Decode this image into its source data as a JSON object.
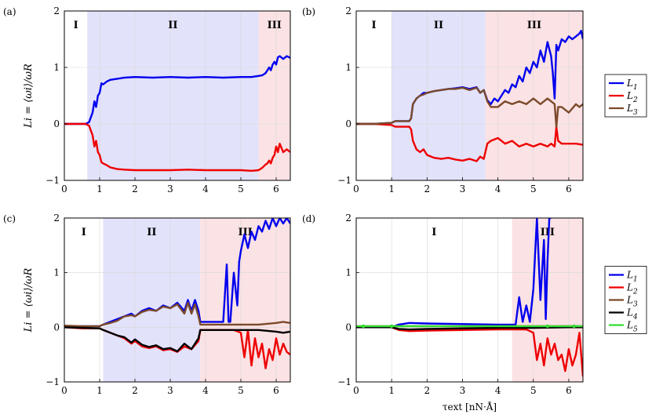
{
  "figure": {
    "xlabel": "τext [nN·Å]",
    "ylabel": "Li = ⟨ωi⟩/ωR"
  },
  "chart_data": [
    {
      "type": "line",
      "panel_label": "(a)",
      "xlim": [
        0,
        6.4
      ],
      "ylim": [
        -1,
        2
      ],
      "xticks": [
        0,
        1,
        2,
        3,
        4,
        5,
        6
      ],
      "yticks": [
        -1,
        0,
        1,
        2
      ],
      "grid": true,
      "show_ylabel": true,
      "show_xlabel": false,
      "regions": [
        {
          "label": "I",
          "x0": 0,
          "x1": 0.65,
          "color": "#ffffff"
        },
        {
          "label": "II",
          "x0": 0.65,
          "x1": 5.5,
          "color": "#e2e2fb"
        },
        {
          "label": "III",
          "x0": 5.5,
          "x1": 6.4,
          "color": "#fbe2e4"
        }
      ],
      "legend": null,
      "series": [
        {
          "name": "L1",
          "color": "#0000ee",
          "x": [
            0,
            0.3,
            0.6,
            0.7,
            0.8,
            0.85,
            0.9,
            0.95,
            1.0,
            1.05,
            1.1,
            1.2,
            1.3,
            1.5,
            1.7,
            2.0,
            2.5,
            3.0,
            3.5,
            4.0,
            4.5,
            5.0,
            5.3,
            5.5,
            5.6,
            5.7,
            5.75,
            5.8,
            5.85,
            5.9,
            5.95,
            6.0,
            6.05,
            6.1,
            6.2,
            6.3,
            6.4
          ],
          "y": [
            0,
            0,
            0,
            0.03,
            0.2,
            0.4,
            0.3,
            0.5,
            0.55,
            0.72,
            0.7,
            0.75,
            0.78,
            0.8,
            0.82,
            0.83,
            0.82,
            0.83,
            0.82,
            0.83,
            0.82,
            0.83,
            0.83,
            0.85,
            0.86,
            0.9,
            0.95,
            1.0,
            0.95,
            1.05,
            1.1,
            1.05,
            1.18,
            1.2,
            1.15,
            1.2,
            1.17
          ]
        },
        {
          "name": "L2",
          "color": "#ee0000",
          "x": [
            0,
            0.3,
            0.6,
            0.7,
            0.8,
            0.85,
            0.9,
            0.95,
            1.0,
            1.05,
            1.1,
            1.2,
            1.3,
            1.5,
            1.7,
            2.0,
            2.5,
            3.0,
            3.5,
            4.0,
            4.5,
            5.0,
            5.3,
            5.5,
            5.6,
            5.7,
            5.75,
            5.8,
            5.85,
            5.9,
            5.95,
            6.0,
            6.05,
            6.1,
            6.2,
            6.3,
            6.4
          ],
          "y": [
            0,
            0,
            0,
            -0.03,
            -0.2,
            -0.4,
            -0.3,
            -0.5,
            -0.55,
            -0.68,
            -0.7,
            -0.73,
            -0.77,
            -0.8,
            -0.81,
            -0.82,
            -0.82,
            -0.82,
            -0.81,
            -0.82,
            -0.82,
            -0.82,
            -0.83,
            -0.82,
            -0.78,
            -0.72,
            -0.7,
            -0.65,
            -0.7,
            -0.6,
            -0.55,
            -0.4,
            -0.5,
            -0.35,
            -0.5,
            -0.45,
            -0.5
          ]
        }
      ]
    },
    {
      "type": "line",
      "panel_label": "(b)",
      "xlim": [
        0,
        6.4
      ],
      "ylim": [
        -1,
        2
      ],
      "xticks": [
        0,
        1,
        2,
        3,
        4,
        5,
        6
      ],
      "yticks": [
        -1,
        0,
        1,
        2
      ],
      "grid": true,
      "show_ylabel": false,
      "show_xlabel": false,
      "regions": [
        {
          "label": "I",
          "x0": 0,
          "x1": 1.0,
          "color": "#ffffff"
        },
        {
          "label": "II",
          "x0": 1.0,
          "x1": 3.65,
          "color": "#e2e2fb"
        },
        {
          "label": "III",
          "x0": 3.65,
          "x1": 6.4,
          "color": "#fbe2e4"
        }
      ],
      "legend": [
        "L1",
        "L2",
        "L3"
      ],
      "series": [
        {
          "name": "L1",
          "color": "#0000ee",
          "x": [
            0,
            0.5,
            1.0,
            1.1,
            1.3,
            1.5,
            1.55,
            1.6,
            1.7,
            1.8,
            1.9,
            2.0,
            2.2,
            2.4,
            2.6,
            2.8,
            3.0,
            3.2,
            3.4,
            3.5,
            3.6,
            3.7,
            3.8,
            3.9,
            4.0,
            4.1,
            4.2,
            4.3,
            4.4,
            4.5,
            4.6,
            4.7,
            4.8,
            4.9,
            5.0,
            5.1,
            5.2,
            5.3,
            5.4,
            5.5,
            5.55,
            5.6,
            5.65,
            5.7,
            5.8,
            5.9,
            6.0,
            6.1,
            6.2,
            6.3,
            6.35,
            6.4
          ],
          "y": [
            0,
            0,
            0.02,
            0.05,
            0.05,
            0.05,
            0.1,
            0.35,
            0.45,
            0.5,
            0.55,
            0.55,
            0.58,
            0.6,
            0.62,
            0.63,
            0.65,
            0.62,
            0.65,
            0.55,
            0.6,
            0.42,
            0.35,
            0.45,
            0.4,
            0.5,
            0.6,
            0.55,
            0.7,
            0.65,
            0.85,
            0.75,
            1.0,
            0.9,
            1.1,
            1.0,
            1.3,
            1.1,
            1.45,
            1.2,
            0.9,
            0.45,
            1.4,
            1.3,
            1.5,
            1.45,
            1.55,
            1.5,
            1.55,
            1.6,
            1.65,
            1.5
          ]
        },
        {
          "name": "L2",
          "color": "#ee0000",
          "x": [
            0,
            0.5,
            1.0,
            1.1,
            1.3,
            1.5,
            1.55,
            1.6,
            1.7,
            1.8,
            1.9,
            2.0,
            2.2,
            2.4,
            2.6,
            2.8,
            3.0,
            3.2,
            3.4,
            3.5,
            3.6,
            3.7,
            3.8,
            4.0,
            4.2,
            4.4,
            4.6,
            4.8,
            5.0,
            5.2,
            5.4,
            5.5,
            5.6,
            5.65,
            5.7,
            5.8,
            6.0,
            6.2,
            6.4
          ],
          "y": [
            0,
            0,
            -0.02,
            -0.05,
            -0.05,
            -0.05,
            -0.1,
            -0.3,
            -0.45,
            -0.5,
            -0.45,
            -0.55,
            -0.6,
            -0.62,
            -0.6,
            -0.63,
            -0.65,
            -0.62,
            -0.66,
            -0.58,
            -0.62,
            -0.35,
            -0.3,
            -0.25,
            -0.35,
            -0.3,
            -0.4,
            -0.35,
            -0.4,
            -0.35,
            -0.4,
            -0.35,
            -0.4,
            -0.05,
            -0.3,
            -0.35,
            -0.35,
            -0.35,
            -0.37
          ]
        },
        {
          "name": "L3",
          "color": "#7b4a2a",
          "x": [
            0,
            0.5,
            1.0,
            1.1,
            1.3,
            1.5,
            1.55,
            1.6,
            1.7,
            1.8,
            1.9,
            2.0,
            2.2,
            2.4,
            2.6,
            2.8,
            3.0,
            3.2,
            3.4,
            3.5,
            3.6,
            3.7,
            3.8,
            4.0,
            4.2,
            4.4,
            4.6,
            4.8,
            5.0,
            5.2,
            5.4,
            5.5,
            5.6,
            5.65,
            5.7,
            5.8,
            6.0,
            6.2,
            6.3,
            6.4
          ],
          "y": [
            0,
            0,
            0.02,
            0.05,
            0.05,
            0.05,
            0.1,
            0.35,
            0.45,
            0.5,
            0.52,
            0.55,
            0.58,
            0.6,
            0.62,
            0.62,
            0.64,
            0.6,
            0.64,
            0.55,
            0.6,
            0.4,
            0.3,
            0.3,
            0.4,
            0.35,
            0.4,
            0.35,
            0.45,
            0.35,
            0.45,
            0.4,
            0.35,
            -0.05,
            0.3,
            0.3,
            0.2,
            0.35,
            0.3,
            0.35
          ]
        }
      ]
    },
    {
      "type": "line",
      "panel_label": "(c)",
      "xlim": [
        0,
        6.4
      ],
      "ylim": [
        -1,
        2
      ],
      "xticks": [
        0,
        1,
        2,
        3,
        4,
        5,
        6
      ],
      "yticks": [
        -1,
        0,
        1,
        2
      ],
      "grid": true,
      "show_ylabel": true,
      "show_xlabel": false,
      "regions": [
        {
          "label": "I",
          "x0": 0,
          "x1": 1.1,
          "color": "#ffffff"
        },
        {
          "label": "II",
          "x0": 1.1,
          "x1": 3.85,
          "color": "#e2e2fb"
        },
        {
          "label": "III",
          "x0": 3.85,
          "x1": 6.4,
          "color": "#fbe2e4"
        }
      ],
      "legend": null,
      "series": [
        {
          "name": "L1",
          "color": "#0000ee",
          "x": [
            0,
            0.5,
            1.0,
            1.1,
            1.3,
            1.5,
            1.7,
            1.9,
            2.0,
            2.2,
            2.4,
            2.6,
            2.8,
            3.0,
            3.2,
            3.4,
            3.5,
            3.6,
            3.7,
            3.8,
            3.85,
            4.0,
            4.5,
            4.6,
            4.65,
            4.7,
            4.8,
            4.9,
            4.95,
            5.0,
            5.1,
            5.2,
            5.3,
            5.4,
            5.5,
            5.6,
            5.7,
            5.8,
            5.9,
            6.0,
            6.1,
            6.2,
            6.3,
            6.4
          ],
          "y": [
            0,
            0.02,
            0.02,
            0.05,
            0.1,
            0.15,
            0.2,
            0.25,
            0.2,
            0.3,
            0.35,
            0.3,
            0.4,
            0.35,
            0.45,
            0.3,
            0.5,
            0.3,
            0.5,
            0.3,
            0.1,
            0.1,
            0.1,
            1.15,
            0.1,
            0.1,
            1.0,
            0.4,
            1.2,
            1.4,
            1.7,
            1.45,
            1.75,
            1.6,
            1.85,
            1.75,
            1.95,
            1.8,
            2.0,
            1.85,
            2.0,
            1.9,
            2.0,
            1.9
          ]
        },
        {
          "name": "L2",
          "color": "#ee0000",
          "x": [
            0,
            0.5,
            1.0,
            1.1,
            1.3,
            1.5,
            1.7,
            1.9,
            2.0,
            2.2,
            2.4,
            2.6,
            2.8,
            3.0,
            3.2,
            3.4,
            3.6,
            3.8,
            3.85,
            4.0,
            4.5,
            4.8,
            5.0,
            5.1,
            5.2,
            5.3,
            5.4,
            5.5,
            5.6,
            5.7,
            5.8,
            5.9,
            6.0,
            6.1,
            6.2,
            6.3,
            6.4
          ],
          "y": [
            0,
            -0.02,
            -0.02,
            -0.05,
            -0.1,
            -0.15,
            -0.2,
            -0.3,
            -0.25,
            -0.35,
            -0.38,
            -0.35,
            -0.42,
            -0.4,
            -0.45,
            -0.35,
            -0.4,
            -0.25,
            -0.05,
            -0.05,
            -0.05,
            -0.05,
            -0.1,
            -0.55,
            -0.05,
            -0.7,
            -0.2,
            -0.55,
            -0.3,
            -0.75,
            -0.4,
            -0.6,
            -0.2,
            -0.5,
            -0.3,
            -0.45,
            -0.5
          ]
        },
        {
          "name": "L3",
          "color": "#7b4a2a",
          "x": [
            0,
            0.5,
            1.0,
            1.1,
            1.3,
            1.5,
            1.7,
            1.9,
            2.0,
            2.2,
            2.4,
            2.6,
            2.8,
            3.0,
            3.2,
            3.4,
            3.5,
            3.6,
            3.7,
            3.8,
            3.85,
            4.0,
            4.5,
            5.0,
            5.5,
            6.0,
            6.2,
            6.4
          ],
          "y": [
            0.03,
            0.02,
            0.02,
            0.05,
            0.08,
            0.12,
            0.2,
            0.22,
            0.2,
            0.28,
            0.32,
            0.3,
            0.38,
            0.35,
            0.42,
            0.25,
            0.45,
            0.25,
            0.42,
            0.2,
            0.05,
            0.05,
            0.05,
            0.05,
            0.05,
            0.08,
            0.1,
            0.08
          ]
        },
        {
          "name": "L4",
          "color": "#000000",
          "x": [
            0,
            0.5,
            1.0,
            1.1,
            1.3,
            1.5,
            1.7,
            1.9,
            2.0,
            2.2,
            2.4,
            2.6,
            2.8,
            3.0,
            3.2,
            3.4,
            3.6,
            3.8,
            3.85,
            4.0,
            4.5,
            5.0,
            5.5,
            6.0,
            6.2,
            6.4
          ],
          "y": [
            0,
            -0.01,
            -0.02,
            -0.05,
            -0.1,
            -0.15,
            -0.18,
            -0.28,
            -0.22,
            -0.32,
            -0.36,
            -0.33,
            -0.4,
            -0.38,
            -0.44,
            -0.3,
            -0.4,
            -0.2,
            -0.05,
            -0.05,
            -0.05,
            -0.05,
            -0.05,
            -0.08,
            -0.1,
            -0.08
          ]
        }
      ]
    },
    {
      "type": "line",
      "panel_label": "(d)",
      "xlim": [
        0,
        6.4
      ],
      "ylim": [
        -1,
        2
      ],
      "xticks": [
        0,
        1,
        2,
        3,
        4,
        5,
        6
      ],
      "yticks": [
        -1,
        0,
        1,
        2
      ],
      "grid": true,
      "show_ylabel": false,
      "show_xlabel": true,
      "regions": [
        {
          "label": "I",
          "x0": 0,
          "x1": 4.4,
          "color": "#ffffff"
        },
        {
          "label": "III",
          "x0": 4.4,
          "x1": 6.4,
          "color": "#fbe2e4"
        }
      ],
      "legend": [
        "L1",
        "L2",
        "L3",
        "L4",
        "L5"
      ],
      "series": [
        {
          "name": "L1",
          "color": "#0000ee",
          "x": [
            0,
            1.0,
            1.2,
            1.5,
            2.0,
            3.0,
            4.0,
            4.5,
            4.6,
            4.7,
            4.8,
            4.9,
            5.0,
            5.1,
            5.2,
            5.3,
            5.35,
            5.4,
            5.45,
            5.5
          ],
          "y": [
            0,
            0,
            0.05,
            0.08,
            0.07,
            0.06,
            0.05,
            0.05,
            0.55,
            0.1,
            0.4,
            0.1,
            0.7,
            2.0,
            0.5,
            1.6,
            0.15,
            1.2,
            2.0,
            2.0
          ]
        },
        {
          "name": "L2",
          "color": "#ee0000",
          "x": [
            0,
            1.0,
            1.2,
            1.5,
            2.0,
            3.0,
            4.0,
            4.5,
            4.8,
            5.0,
            5.1,
            5.2,
            5.3,
            5.4,
            5.5,
            5.6,
            5.7,
            5.8,
            5.9,
            6.0,
            6.1,
            6.2,
            6.3,
            6.4
          ],
          "y": [
            0,
            0,
            -0.05,
            -0.07,
            -0.06,
            -0.05,
            -0.04,
            -0.04,
            -0.04,
            -0.1,
            -0.6,
            -0.3,
            -0.7,
            -0.2,
            -0.5,
            -0.3,
            -0.6,
            -0.5,
            -0.8,
            -0.4,
            -0.7,
            -0.5,
            -0.1,
            -0.9
          ]
        },
        {
          "name": "L3",
          "color": "#7b4a2a",
          "x": [
            0,
            1.0,
            2.0,
            3.0,
            4.0,
            5.0,
            6.0,
            6.4
          ],
          "y": [
            0.02,
            0.02,
            0.02,
            0.02,
            0.02,
            0.02,
            0.02,
            0.02
          ]
        },
        {
          "name": "L4",
          "color": "#000000",
          "x": [
            0,
            1.0,
            1.2,
            1.5,
            2.0,
            3.0,
            4.0,
            5.0,
            6.0,
            6.4
          ],
          "y": [
            0,
            0,
            -0.03,
            -0.04,
            -0.03,
            -0.02,
            -0.01,
            -0.01,
            0,
            0
          ]
        },
        {
          "name": "L5",
          "color": "#33dd33",
          "x": [
            0,
            1.0,
            2.0,
            3.0,
            4.0,
            5.0,
            5.5,
            6.0,
            6.4
          ],
          "y": [
            0.02,
            0.02,
            0.02,
            0.02,
            0.02,
            0.02,
            0.02,
            0.02,
            0.02
          ]
        }
      ]
    }
  ]
}
